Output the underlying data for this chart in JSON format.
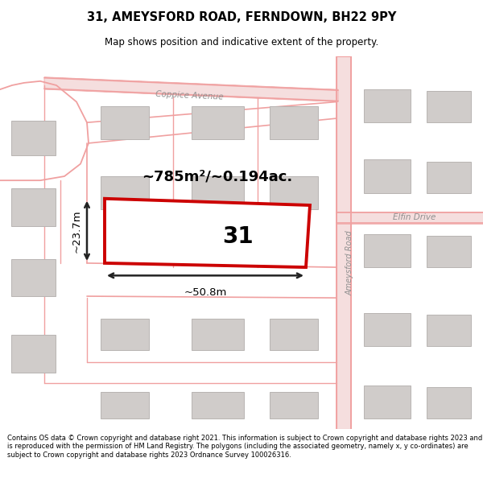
{
  "title": "31, AMEYSFORD ROAD, FERNDOWN, BH22 9PY",
  "subtitle": "Map shows position and indicative extent of the property.",
  "footer": "Contains OS data © Crown copyright and database right 2021. This information is subject to Crown copyright and database rights 2023 and is reproduced with the permission of HM Land Registry. The polygons (including the associated geometry, namely x, y co-ordinates) are subject to Crown copyright and database rights 2023 Ordnance Survey 100026316.",
  "area_text": "~785m²/~0.194ac.",
  "width_text": "~50.8m",
  "height_text": "~23.7m",
  "number_text": "31",
  "street_coppice": "Coppice Avenue",
  "street_ameysford": "Ameysford Road",
  "street_elfin": "Elfin Drive",
  "road_line_color": "#f0a0a0",
  "road_fill_color": "#f5dede",
  "building_fill": "#d0ccca",
  "building_edge": "#b8b4b2",
  "prop_color": "#cc0000",
  "prop_fill": "#ffffff",
  "map_bg": "#f2eeec",
  "dim_color": "#222222"
}
